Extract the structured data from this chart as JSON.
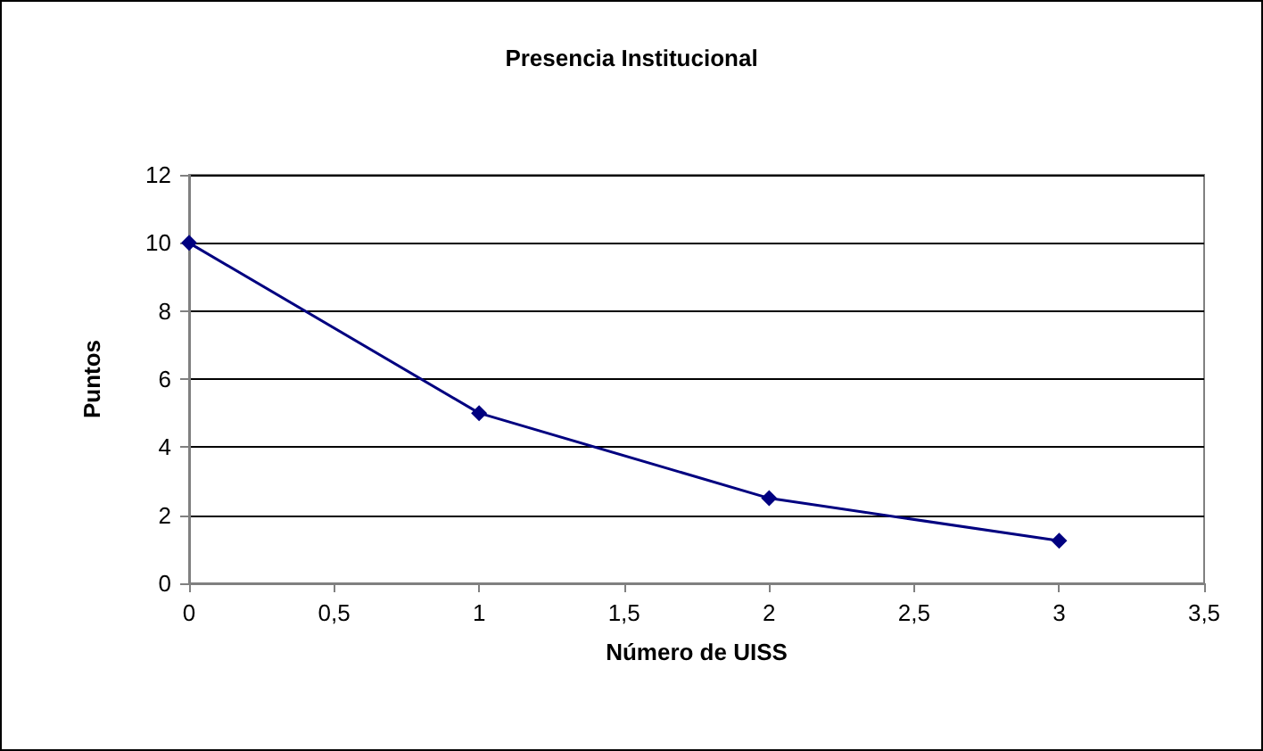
{
  "chart_data": {
    "type": "line",
    "title": "Presencia Institucional",
    "xlabel": "Número de UISS",
    "ylabel": "Puntos",
    "x": [
      0,
      1,
      2,
      3
    ],
    "series": [
      {
        "color": "#000080",
        "values": [
          10,
          5,
          2.5,
          1.25
        ]
      }
    ],
    "xlim": [
      0,
      3.5
    ],
    "xticks": [
      0,
      {
        "value": 0.5,
        "label": "0,5"
      },
      1,
      {
        "value": 1.5,
        "label": "1,5"
      },
      2,
      {
        "value": 2.5,
        "label": "2,5"
      },
      3,
      {
        "value": 3.5,
        "label": "3,5"
      }
    ],
    "ylim": [
      0,
      12
    ],
    "yticks": [
      0,
      2,
      4,
      6,
      8,
      10,
      12
    ],
    "grid": "y",
    "marker": "diamond",
    "line_style": "solid"
  }
}
